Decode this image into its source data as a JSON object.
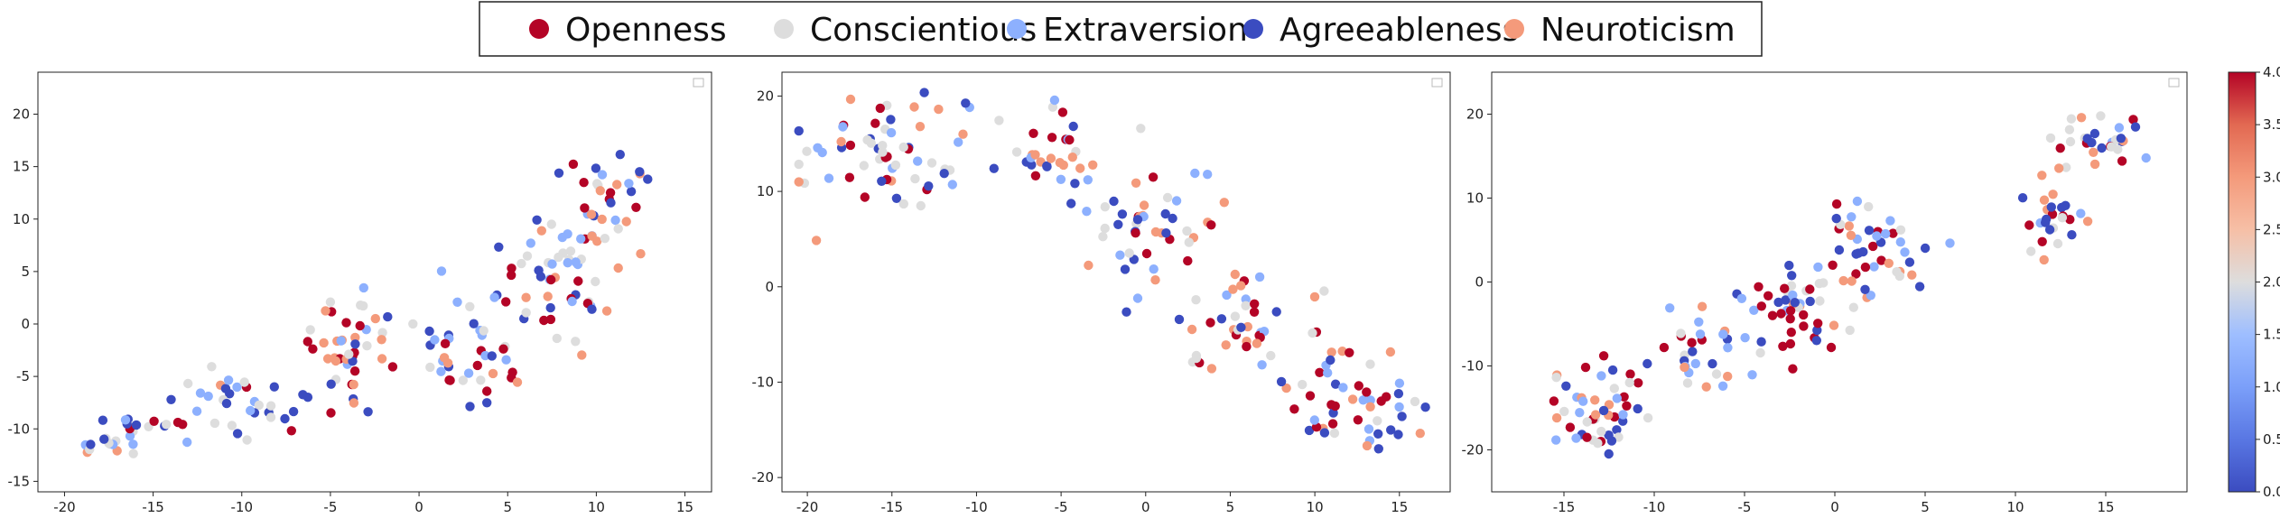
{
  "legend": {
    "items": [
      {
        "label": "Openness",
        "color": "#b40426"
      },
      {
        "label": "Conscientious",
        "color": "#dddddd"
      },
      {
        "label": "Extraversion",
        "color": "#8db0fe"
      },
      {
        "label": "Agreeableness",
        "color": "#3b4cc0"
      },
      {
        "label": "Neuroticism",
        "color": "#f49a7b"
      }
    ]
  },
  "colorbar": {
    "colormap": "coolwarm",
    "min": 0.0,
    "max": 4.0,
    "ticks": [
      "0.0",
      "0.5",
      "1.0",
      "1.5",
      "2.0",
      "2.5",
      "3.0",
      "3.5",
      "4.0"
    ]
  },
  "chart_data": [
    {
      "type": "scatter",
      "title": "",
      "xlabel": "",
      "ylabel": "",
      "xlim": [
        -21.5,
        16.5
      ],
      "ylim": [
        -16,
        24
      ],
      "xticks": [
        -20,
        -15,
        -10,
        -5,
        0,
        5,
        10,
        15
      ],
      "yticks": [
        -15,
        -10,
        -5,
        0,
        5,
        10,
        15,
        20
      ],
      "grid": false,
      "category_colors": [
        "#b40426",
        "#dddddd",
        "#8db0fe",
        "#3b4cc0",
        "#f49a7b"
      ],
      "clusters": [
        {
          "center": [
            -16,
            -10.5
          ],
          "spread": [
            3.0,
            2.2
          ],
          "count": 30,
          "seed": 11
        },
        {
          "center": [
            -10,
            -8
          ],
          "spread": [
            3.0,
            4.0
          ],
          "count": 30,
          "seed": 12
        },
        {
          "center": [
            -4,
            -3
          ],
          "spread": [
            2.8,
            5.5
          ],
          "count": 45,
          "seed": 13
        },
        {
          "center": [
            3,
            -2
          ],
          "spread": [
            3.0,
            5.0
          ],
          "count": 40,
          "seed": 14
        },
        {
          "center": [
            8,
            5
          ],
          "spread": [
            3.5,
            8.0
          ],
          "count": 60,
          "seed": 15
        },
        {
          "center": [
            11,
            12
          ],
          "spread": [
            2.5,
            4.5
          ],
          "count": 25,
          "seed": 16
        }
      ]
    },
    {
      "type": "scatter",
      "title": "",
      "xlabel": "",
      "ylabel": "",
      "xlim": [
        -21.5,
        18
      ],
      "ylim": [
        -21.5,
        22.5
      ],
      "xticks": [
        -20,
        -15,
        -10,
        -5,
        0,
        5,
        10,
        15
      ],
      "yticks": [
        -20,
        -10,
        0,
        10,
        20
      ],
      "grid": false,
      "category_colors": [
        "#b40426",
        "#dddddd",
        "#8db0fe",
        "#3b4cc0",
        "#f49a7b"
      ],
      "clusters": [
        {
          "center": [
            -15,
            14
          ],
          "spread": [
            5.0,
            6.5
          ],
          "count": 60,
          "seed": 21
        },
        {
          "center": [
            -6,
            13
          ],
          "spread": [
            4.0,
            5.5
          ],
          "count": 35,
          "seed": 22
        },
        {
          "center": [
            1,
            5
          ],
          "spread": [
            4.0,
            6.0
          ],
          "count": 45,
          "seed": 23
        },
        {
          "center": [
            6,
            -4
          ],
          "spread": [
            4.0,
            5.0
          ],
          "count": 40,
          "seed": 24
        },
        {
          "center": [
            12,
            -12
          ],
          "spread": [
            4.0,
            5.5
          ],
          "count": 50,
          "seed": 25
        }
      ]
    },
    {
      "type": "scatter",
      "title": "",
      "xlabel": "",
      "ylabel": "",
      "xlim": [
        -19,
        19.5
      ],
      "ylim": [
        -25,
        25
      ],
      "xticks": [
        -15,
        -10,
        -5,
        0,
        5,
        10,
        15
      ],
      "yticks": [
        -20,
        -10,
        0,
        10,
        20
      ],
      "grid": false,
      "category_colors": [
        "#b40426",
        "#dddddd",
        "#8db0fe",
        "#3b4cc0",
        "#f49a7b"
      ],
      "clusters": [
        {
          "center": [
            -13,
            -15
          ],
          "spread": [
            3.0,
            6.0
          ],
          "count": 50,
          "seed": 31
        },
        {
          "center": [
            -7,
            -8
          ],
          "spread": [
            3.0,
            5.0
          ],
          "count": 30,
          "seed": 32
        },
        {
          "center": [
            -2,
            -3
          ],
          "spread": [
            3.5,
            5.0
          ],
          "count": 45,
          "seed": 33
        },
        {
          "center": [
            2,
            4
          ],
          "spread": [
            3.5,
            5.5
          ],
          "count": 45,
          "seed": 34
        },
        {
          "center": [
            12,
            8
          ],
          "spread": [
            2.0,
            6.0
          ],
          "count": 25,
          "seed": 35
        },
        {
          "center": [
            15,
            16
          ],
          "spread": [
            2.5,
            3.5
          ],
          "count": 30,
          "seed": 36
        }
      ]
    }
  ]
}
